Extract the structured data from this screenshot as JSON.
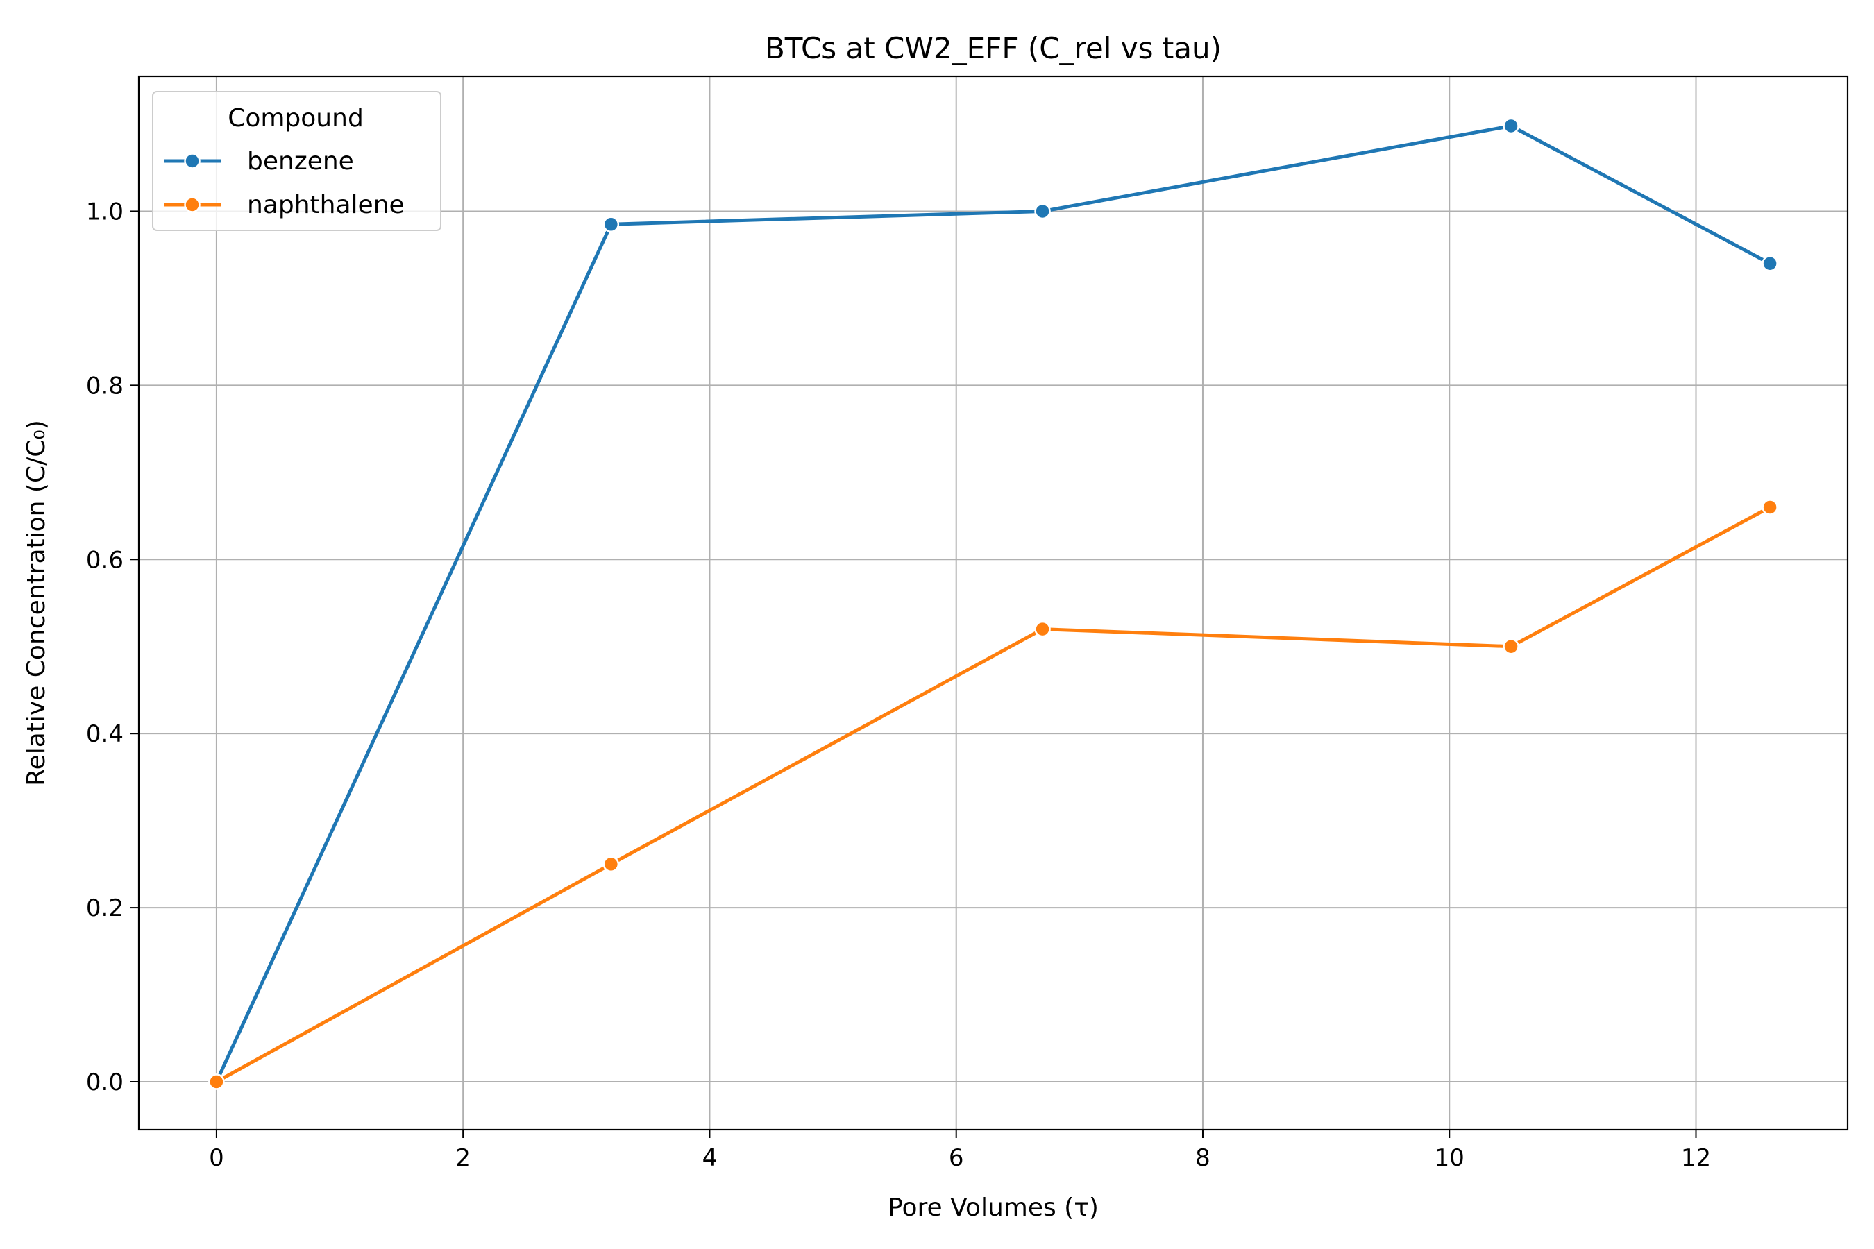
{
  "chart_data": {
    "type": "line",
    "title": "BTCs at CW2_EFF (C_rel vs tau)",
    "xlabel": "Pore Volumes (τ)",
    "ylabel": "Relative Concentration (C/C₀)",
    "xlim": [
      -0.63,
      13.23
    ],
    "ylim": [
      -0.055,
      1.155
    ],
    "xticks": [
      0,
      2,
      4,
      6,
      8,
      10,
      12
    ],
    "xtick_labels": [
      "0",
      "2",
      "4",
      "6",
      "8",
      "10",
      "12"
    ],
    "yticks": [
      0.0,
      0.2,
      0.4,
      0.6,
      0.8,
      1.0
    ],
    "ytick_labels": [
      "0.0",
      "0.2",
      "0.4",
      "0.6",
      "0.8",
      "1.0"
    ],
    "grid": true,
    "legend": {
      "title": "Compound",
      "placement": "top-left"
    },
    "series": [
      {
        "name": "benzene",
        "color": "#1f77b4",
        "x": [
          0,
          3.2,
          6.7,
          10.5,
          12.6
        ],
        "y": [
          0.0,
          0.985,
          1.0,
          1.098,
          0.94
        ]
      },
      {
        "name": "naphthalene",
        "color": "#ff7f0e",
        "x": [
          0,
          3.2,
          6.7,
          10.5,
          12.6
        ],
        "y": [
          0.0,
          0.25,
          0.52,
          0.5,
          0.66
        ]
      }
    ]
  }
}
